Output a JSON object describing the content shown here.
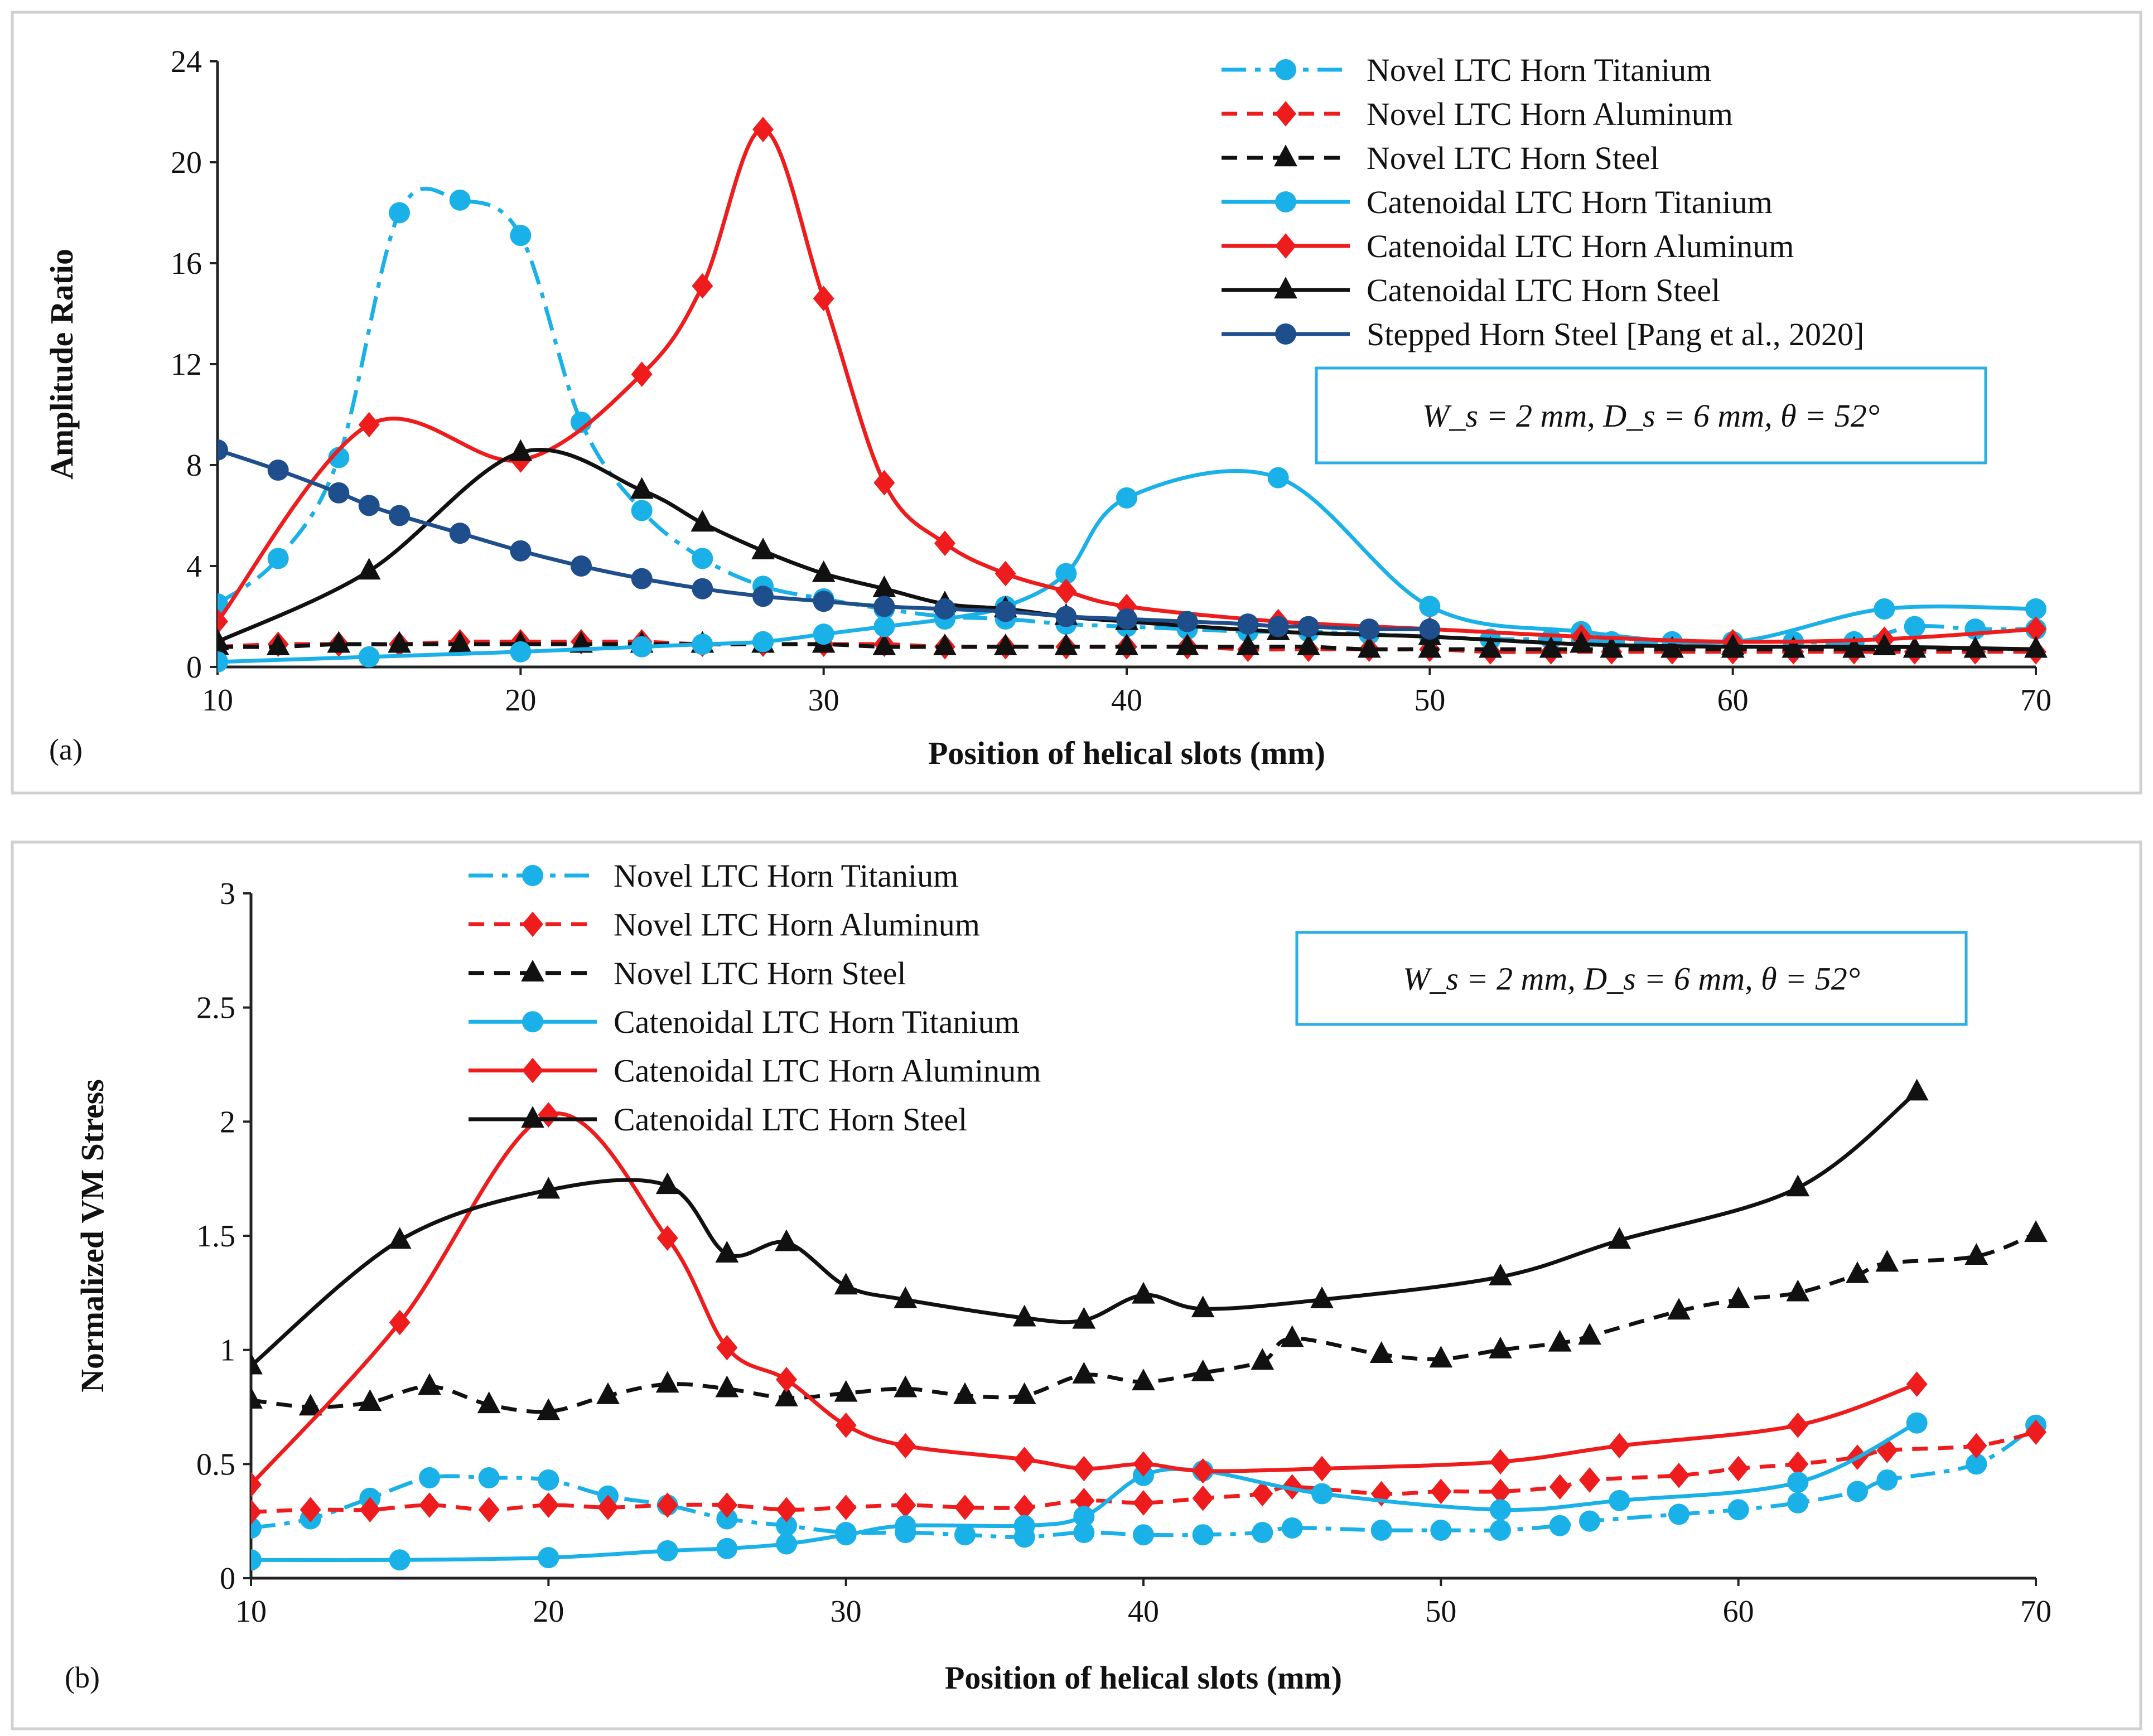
{
  "styles": {
    "cyan": "#1ab0e8",
    "red": "#ee1c1c",
    "black": "#111111",
    "navy": "#1f4e8c"
  },
  "chart_data": [
    {
      "id": "a",
      "type": "line",
      "panel_label": "(a)",
      "xlabel": "Position of helical slots (mm)",
      "ylabel": "Amplitude Ratio",
      "xlim": [
        10,
        70
      ],
      "ylim": [
        0,
        24
      ],
      "xticks": [
        "10",
        "20",
        "30",
        "40",
        "50",
        "60",
        "70"
      ],
      "yticks": [
        "0",
        "4",
        "8",
        "12",
        "16",
        "20",
        "24"
      ],
      "annotation": "W_s = 2 mm, D_s = 6 mm, θ = 52°",
      "legend_position": "top-right",
      "series": [
        {
          "name": "Novel LTC Horn Titanium",
          "color": "#1ab0e8",
          "dash": "dashdot",
          "marker": "circle",
          "x": [
            10,
            12,
            14,
            16,
            18,
            20,
            22,
            24,
            26,
            28,
            30,
            32,
            34,
            36,
            38,
            40,
            42,
            44,
            46,
            48,
            50,
            52,
            54,
            56,
            58,
            60,
            62,
            64,
            66,
            68,
            70
          ],
          "y": [
            2.5,
            4.3,
            8.3,
            18.0,
            18.5,
            17.1,
            9.7,
            6.2,
            4.3,
            3.2,
            2.7,
            2.3,
            2.0,
            1.9,
            1.7,
            1.6,
            1.5,
            1.4,
            1.4,
            1.3,
            1.2,
            1.1,
            1.1,
            1.0,
            1.0,
            1.0,
            1.0,
            1.0,
            1.6,
            1.5,
            1.5
          ]
        },
        {
          "name": "Novel LTC Horn Aluminum",
          "color": "#ee1c1c",
          "dash": "dash",
          "marker": "diamond",
          "x": [
            10,
            12,
            14,
            16,
            18,
            20,
            22,
            24,
            26,
            28,
            30,
            32,
            34,
            36,
            38,
            40,
            42,
            44,
            46,
            48,
            50,
            52,
            54,
            56,
            58,
            60,
            62,
            64,
            66,
            68,
            70
          ],
          "y": [
            0.8,
            0.9,
            0.9,
            0.9,
            1.0,
            1.0,
            1.0,
            1.0,
            0.9,
            0.9,
            0.9,
            0.9,
            0.8,
            0.8,
            0.8,
            0.8,
            0.8,
            0.7,
            0.7,
            0.7,
            0.7,
            0.6,
            0.6,
            0.6,
            0.6,
            0.6,
            0.6,
            0.6,
            0.6,
            0.6,
            0.6
          ]
        },
        {
          "name": "Novel LTC Horn Steel",
          "color": "#111111",
          "dash": "dash",
          "marker": "triangle",
          "x": [
            10,
            12,
            14,
            16,
            18,
            20,
            22,
            24,
            26,
            28,
            30,
            32,
            34,
            36,
            38,
            40,
            42,
            44,
            46,
            48,
            50,
            52,
            54,
            56,
            58,
            60,
            62,
            64,
            66,
            68,
            70
          ],
          "y": [
            0.8,
            0.8,
            0.9,
            0.9,
            0.9,
            0.9,
            0.9,
            0.9,
            0.9,
            0.9,
            0.9,
            0.8,
            0.8,
            0.8,
            0.8,
            0.8,
            0.8,
            0.8,
            0.8,
            0.7,
            0.7,
            0.7,
            0.7,
            0.7,
            0.7,
            0.7,
            0.7,
            0.7,
            0.7,
            0.7,
            0.7
          ]
        },
        {
          "name": "Catenoidal LTC Horn Titanium",
          "color": "#1ab0e8",
          "dash": "solid",
          "marker": "circle",
          "x": [
            10,
            15,
            20,
            24,
            26,
            28,
            30,
            32,
            34,
            36,
            38,
            40,
            45,
            50,
            55,
            60,
            65,
            70
          ],
          "y": [
            0.2,
            0.4,
            0.6,
            0.8,
            0.9,
            1.0,
            1.3,
            1.6,
            1.9,
            2.4,
            3.7,
            6.7,
            7.5,
            2.4,
            1.4,
            1.0,
            2.3,
            2.3
          ]
        },
        {
          "name": "Catenoidal LTC Horn Aluminum",
          "color": "#ee1c1c",
          "dash": "solid",
          "marker": "diamond",
          "x": [
            10,
            15,
            20,
            24,
            26,
            28,
            30,
            32,
            34,
            36,
            38,
            40,
            45,
            50,
            55,
            60,
            65,
            70
          ],
          "y": [
            1.8,
            9.6,
            8.2,
            11.6,
            15.1,
            21.3,
            14.6,
            7.3,
            4.9,
            3.7,
            3.0,
            2.4,
            1.8,
            1.5,
            1.2,
            1.0,
            1.1,
            1.5
          ]
        },
        {
          "name": "Catenoidal LTC Horn Steel",
          "color": "#111111",
          "dash": "solid",
          "marker": "triangle",
          "x": [
            10,
            15,
            20,
            24,
            26,
            28,
            30,
            32,
            34,
            36,
            38,
            40,
            45,
            50,
            55,
            60,
            65,
            70
          ],
          "y": [
            1.0,
            3.8,
            8.5,
            7.0,
            5.7,
            4.6,
            3.7,
            3.1,
            2.5,
            2.3,
            2.0,
            1.8,
            1.4,
            1.2,
            0.9,
            0.8,
            0.8,
            0.7
          ]
        },
        {
          "name": "Stepped Horn Steel [Pang et al., 2020]",
          "color": "#1f4e8c",
          "dash": "solid",
          "marker": "circle",
          "x": [
            10,
            12,
            14,
            15,
            16,
            18,
            20,
            22,
            24,
            26,
            28,
            30,
            32,
            34,
            36,
            38,
            40,
            42,
            44,
            45,
            46,
            48,
            50
          ],
          "y": [
            8.6,
            7.8,
            6.9,
            6.4,
            6.0,
            5.3,
            4.6,
            4.0,
            3.5,
            3.1,
            2.8,
            2.6,
            2.4,
            2.3,
            2.2,
            2.0,
            1.9,
            1.8,
            1.7,
            1.6,
            1.6,
            1.5,
            1.5
          ]
        }
      ]
    },
    {
      "id": "b",
      "type": "line",
      "panel_label": "(b)",
      "xlabel": "Position of helical slots (mm)",
      "ylabel": "Normalized VM Stress",
      "xlim": [
        10,
        70
      ],
      "ylim": [
        0,
        3
      ],
      "xticks": [
        "10",
        "20",
        "30",
        "40",
        "50",
        "60",
        "70"
      ],
      "yticks": [
        "0",
        "0.5",
        "1",
        "1.5",
        "2",
        "2.5",
        "3"
      ],
      "annotation": "W_s = 2 mm, D_s = 6 mm, θ = 52°",
      "legend_position": "top-left",
      "series": [
        {
          "name": "Novel LTC Horn Titanium",
          "color": "#1ab0e8",
          "dash": "dashdot",
          "marker": "circle",
          "x": [
            10,
            12,
            14,
            16,
            18,
            20,
            22,
            24,
            26,
            28,
            30,
            32,
            34,
            36,
            38,
            40,
            42,
            44,
            45,
            48,
            50,
            52,
            54,
            55,
            58,
            60,
            62,
            64,
            65,
            68,
            70
          ],
          "y": [
            0.22,
            0.26,
            0.35,
            0.44,
            0.44,
            0.43,
            0.36,
            0.32,
            0.26,
            0.23,
            0.2,
            0.2,
            0.19,
            0.18,
            0.2,
            0.19,
            0.19,
            0.2,
            0.22,
            0.21,
            0.21,
            0.21,
            0.23,
            0.25,
            0.28,
            0.3,
            0.33,
            0.38,
            0.43,
            0.5,
            0.67
          ]
        },
        {
          "name": "Novel LTC Horn Aluminum",
          "color": "#ee1c1c",
          "dash": "dash",
          "marker": "diamond",
          "x": [
            10,
            12,
            14,
            16,
            18,
            20,
            22,
            24,
            26,
            28,
            30,
            32,
            34,
            36,
            38,
            40,
            42,
            44,
            45,
            48,
            50,
            52,
            54,
            55,
            58,
            60,
            62,
            64,
            65,
            68,
            70
          ],
          "y": [
            0.29,
            0.3,
            0.3,
            0.32,
            0.3,
            0.32,
            0.31,
            0.32,
            0.32,
            0.3,
            0.31,
            0.32,
            0.31,
            0.31,
            0.34,
            0.33,
            0.35,
            0.37,
            0.4,
            0.37,
            0.38,
            0.38,
            0.4,
            0.43,
            0.45,
            0.48,
            0.5,
            0.53,
            0.56,
            0.58,
            0.64
          ]
        },
        {
          "name": "Novel LTC Horn Steel",
          "color": "#111111",
          "dash": "dash",
          "marker": "triangle",
          "x": [
            10,
            12,
            14,
            16,
            18,
            20,
            22,
            24,
            26,
            28,
            30,
            32,
            34,
            36,
            38,
            40,
            42,
            44,
            45,
            48,
            50,
            52,
            54,
            55,
            58,
            60,
            62,
            64,
            65,
            68,
            70
          ],
          "y": [
            0.78,
            0.75,
            0.77,
            0.84,
            0.76,
            0.73,
            0.8,
            0.85,
            0.83,
            0.79,
            0.81,
            0.83,
            0.8,
            0.8,
            0.89,
            0.86,
            0.9,
            0.95,
            1.05,
            0.98,
            0.96,
            1.0,
            1.03,
            1.06,
            1.17,
            1.22,
            1.25,
            1.33,
            1.38,
            1.41,
            1.51
          ]
        },
        {
          "name": "Catenoidal LTC Horn Titanium",
          "color": "#1ab0e8",
          "dash": "solid",
          "marker": "circle",
          "x": [
            10,
            15,
            20,
            24,
            26,
            28,
            30,
            32,
            36,
            38,
            40,
            42,
            46,
            52,
            56,
            62,
            66
          ],
          "y": [
            0.08,
            0.08,
            0.09,
            0.12,
            0.13,
            0.15,
            0.19,
            0.23,
            0.23,
            0.27,
            0.45,
            0.47,
            0.37,
            0.3,
            0.34,
            0.42,
            0.68
          ]
        },
        {
          "name": "Catenoidal LTC Horn Aluminum",
          "color": "#ee1c1c",
          "dash": "solid",
          "marker": "diamond",
          "x": [
            10,
            15,
            20,
            24,
            26,
            28,
            30,
            32,
            36,
            38,
            40,
            42,
            46,
            52,
            56,
            62,
            66
          ],
          "y": [
            0.41,
            1.12,
            2.03,
            1.49,
            1.01,
            0.87,
            0.67,
            0.58,
            0.52,
            0.48,
            0.5,
            0.47,
            0.48,
            0.51,
            0.58,
            0.67,
            0.85
          ]
        },
        {
          "name": "Catenoidal LTC Horn Steel",
          "color": "#111111",
          "dash": "solid",
          "marker": "triangle",
          "x": [
            10,
            15,
            20,
            24,
            26,
            28,
            30,
            32,
            36,
            38,
            40,
            42,
            46,
            52,
            56,
            62,
            66
          ],
          "y": [
            0.93,
            1.48,
            1.7,
            1.72,
            1.42,
            1.47,
            1.28,
            1.22,
            1.14,
            1.13,
            1.24,
            1.18,
            1.22,
            1.32,
            1.48,
            1.71,
            2.13
          ]
        }
      ]
    }
  ]
}
